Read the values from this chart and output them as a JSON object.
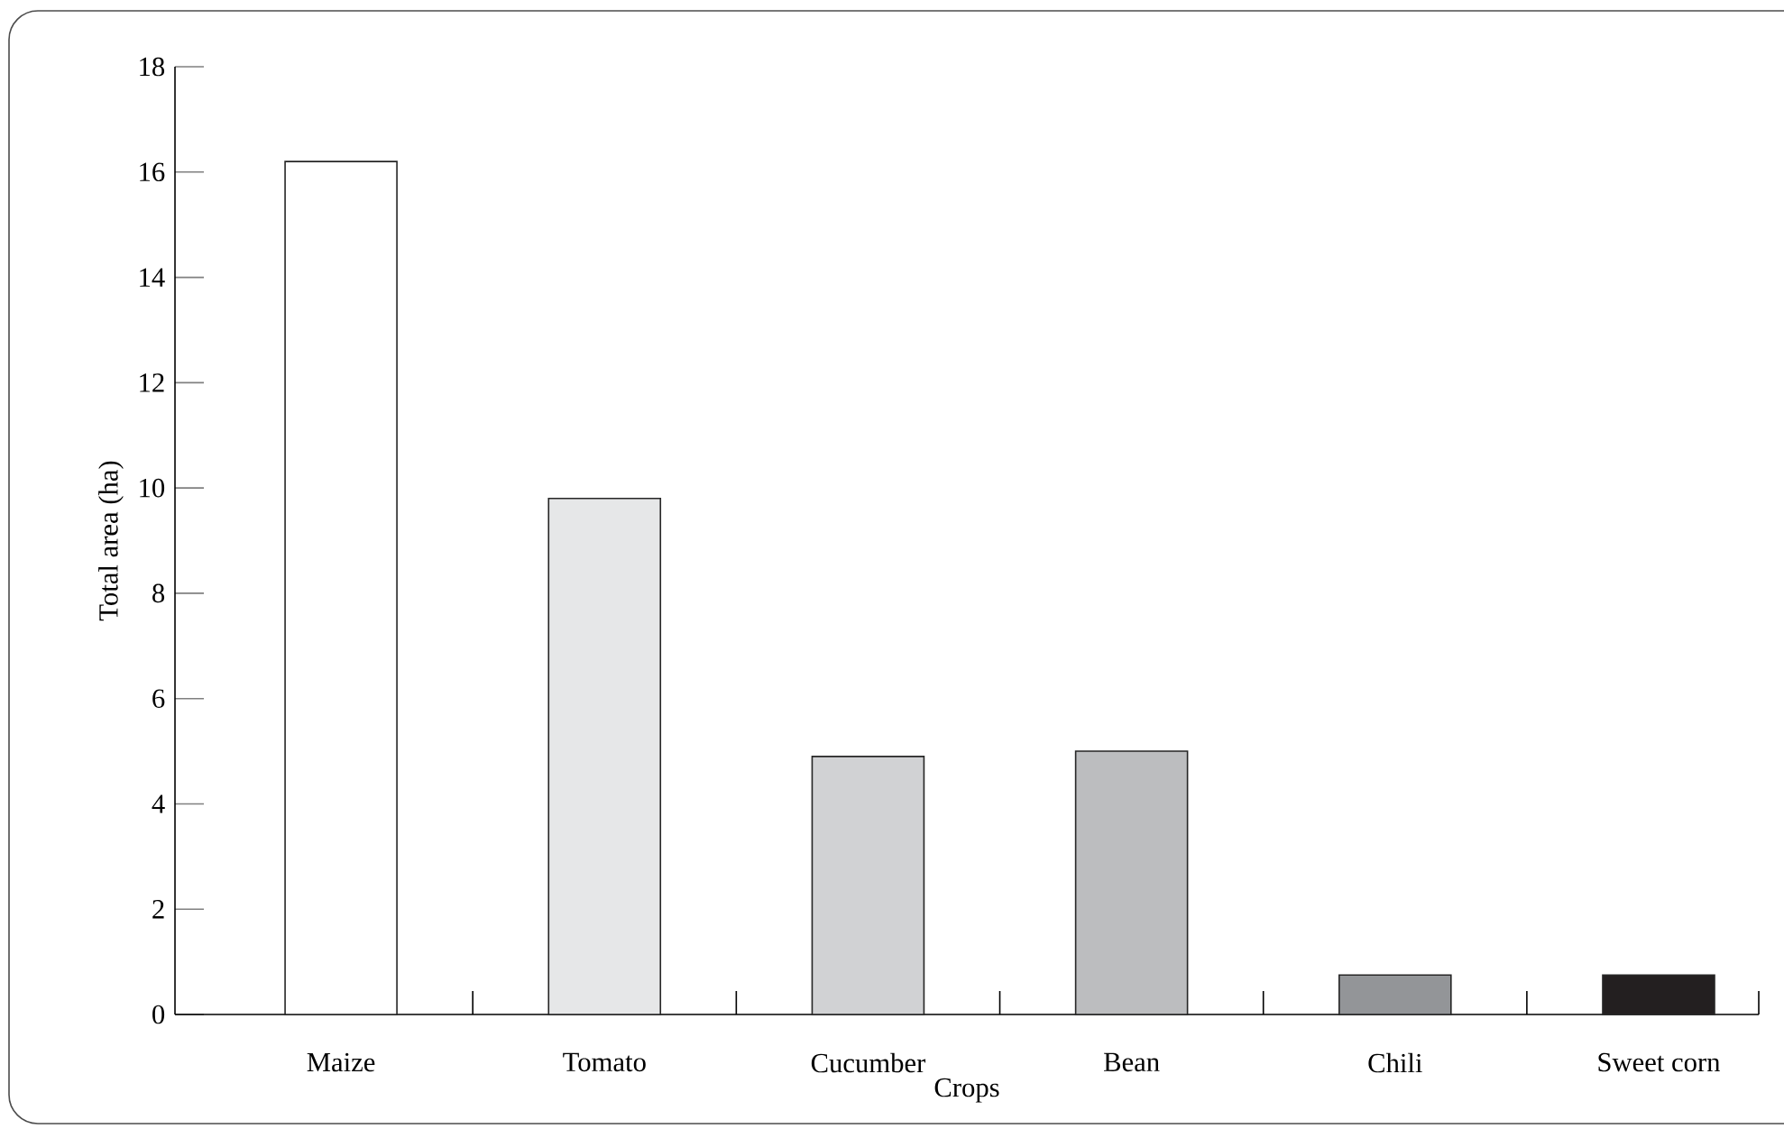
{
  "chart_data": {
    "type": "bar",
    "xlabel": "Crops",
    "ylabel": "Total area (ha)",
    "categories": [
      "Maize",
      "Tomato",
      "Cucumber",
      "Bean",
      "Chili",
      "Sweet corn"
    ],
    "values": [
      16.2,
      9.8,
      4.9,
      5.0,
      0.75,
      0.75
    ],
    "colors": [
      "#ffffff",
      "#e6e7e8",
      "#d1d2d4",
      "#bcbdbf",
      "#939598",
      "#231f20"
    ],
    "ylim": [
      0,
      18
    ],
    "yticks": [
      0,
      2,
      4,
      6,
      8,
      10,
      12,
      14,
      16,
      18
    ]
  }
}
